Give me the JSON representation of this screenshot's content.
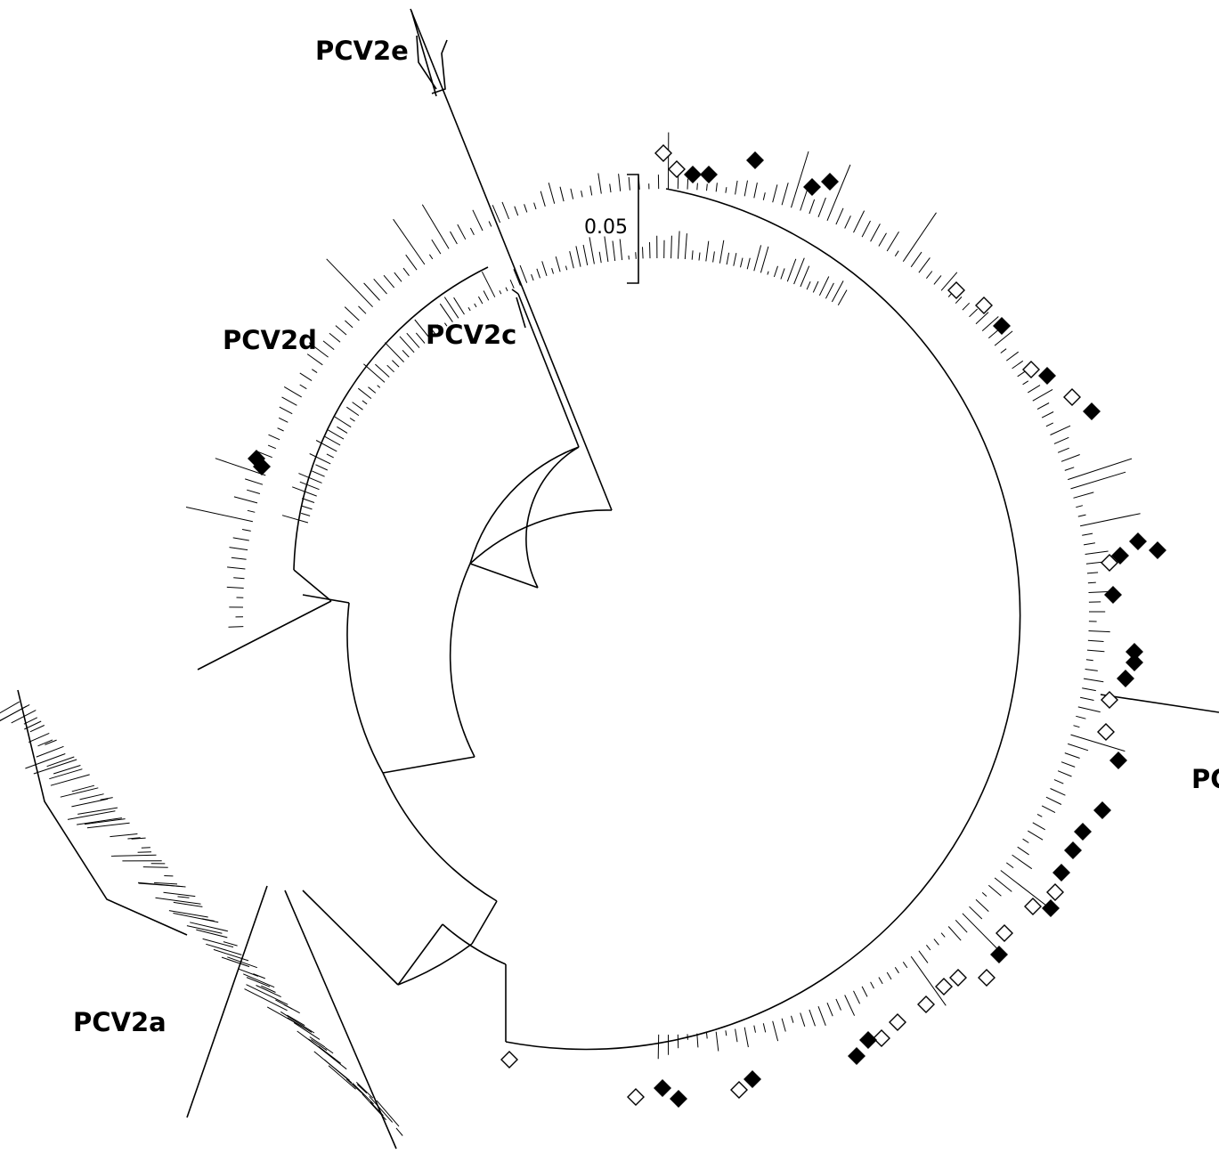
{
  "clades": {
    "e": "PCV2e",
    "d": "PCV2d",
    "c": "PCV2c",
    "a": "PCV2a",
    "b": "PC"
  },
  "scale_bar": {
    "label": "0.05"
  },
  "colors": {
    "stroke": "#000000",
    "filled_marker": "#000000",
    "open_marker": "#ffffff"
  },
  "legend_markers": {
    "filled": "black-diamond",
    "open": "white-diamond"
  }
}
